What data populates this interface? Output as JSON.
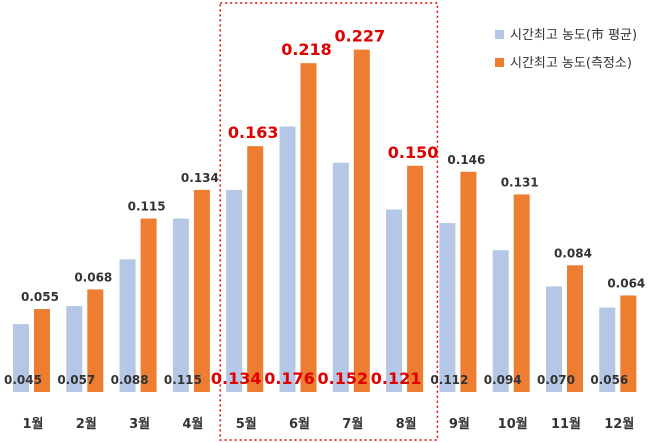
{
  "chart_data": {
    "type": "bar",
    "categories": [
      "1월",
      "2월",
      "3월",
      "4월",
      "5월",
      "6월",
      "7월",
      "8월",
      "9월",
      "10월",
      "11월",
      "12월"
    ],
    "series": [
      {
        "name": "시간최고 농도(市 평균)",
        "color": "#b4c7e7",
        "values": [
          0.045,
          0.057,
          0.088,
          0.115,
          0.134,
          0.176,
          0.152,
          0.121,
          0.112,
          0.094,
          0.07,
          0.056
        ],
        "labels": [
          "0.045",
          "0.057",
          "0.088",
          "0.115",
          "0.134",
          "0.176",
          "0.152",
          "0.121",
          "0.112",
          "0.094",
          "0.070",
          "0.056"
        ]
      },
      {
        "name": "시간최고 농도(측정소)",
        "color": "#ed7d31",
        "values": [
          0.055,
          0.068,
          0.115,
          0.134,
          0.163,
          0.218,
          0.227,
          0.15,
          0.146,
          0.131,
          0.084,
          0.064
        ],
        "labels": [
          "0.055",
          "0.068",
          "0.115",
          "0.134",
          "0.163",
          "0.218",
          "0.227",
          "0.150",
          "0.146",
          "0.131",
          "0.084",
          "0.064"
        ]
      }
    ],
    "ylim": [
      0,
      0.24
    ],
    "grid": false,
    "legend_position": "top-right",
    "highlight": {
      "months": [
        "5월",
        "6월",
        "7월",
        "8월"
      ],
      "style": "dotted-red-box",
      "label_color": "#e00000"
    },
    "default_label_color": "#333333"
  }
}
